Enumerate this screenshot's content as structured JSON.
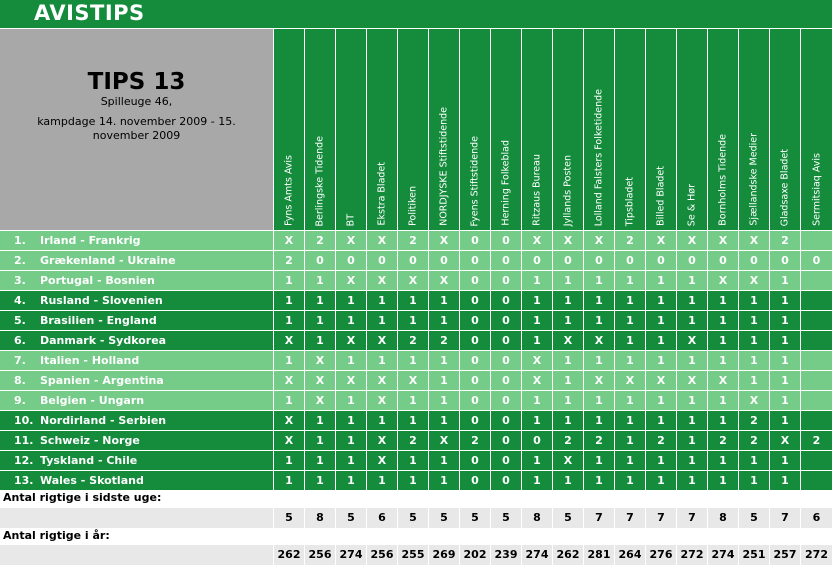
{
  "app_title": "AVISTIPS",
  "info": {
    "title": "TIPS 13",
    "week": "Spilleuge 46,",
    "dates": "kampdage 14. november 2009 - 15. november 2009"
  },
  "colors": {
    "dark_green": "#148c3c",
    "light_green": "#74cc88",
    "gray": "#a8a8a8"
  },
  "papers": [
    "Fyns Amts Avis",
    "Berlingske Tidende",
    "BT",
    "Ekstra Bladet",
    "Politiken",
    "NORDJYSKE Stiftstidende",
    "Fyens Stiftstidende",
    "Herning Folkeblad",
    "Ritzaus Bureau",
    "Jyllands Posten",
    "Lolland Falsters Folketidende",
    "Tipsbladet",
    "Billed Bladet",
    "Se & Hør",
    "Bornholms Tidende",
    "Sjællandske Medier",
    "Gladsaxe Bladet",
    "Sermitsiaq Avis"
  ],
  "matches": [
    {
      "no": "1.",
      "name": "Irland - Frankrig",
      "tips": [
        "X",
        "2",
        "X",
        "X",
        "2",
        "X",
        "0",
        "0",
        "X",
        "X",
        "X",
        "2",
        "X",
        "X",
        "X",
        "X",
        "2",
        ""
      ]
    },
    {
      "no": "2.",
      "name": "Grækenland - Ukraine",
      "tips": [
        "2",
        "0",
        "0",
        "0",
        "0",
        "0",
        "0",
        "0",
        "0",
        "0",
        "0",
        "0",
        "0",
        "0",
        "0",
        "0",
        "0",
        "0"
      ]
    },
    {
      "no": "3.",
      "name": "Portugal - Bosnien",
      "tips": [
        "1",
        "1",
        "X",
        "X",
        "X",
        "X",
        "0",
        "0",
        "1",
        "1",
        "1",
        "1",
        "1",
        "1",
        "X",
        "X",
        "1",
        ""
      ]
    },
    {
      "no": "4.",
      "name": "Rusland - Slovenien",
      "tips": [
        "1",
        "1",
        "1",
        "1",
        "1",
        "1",
        "0",
        "0",
        "1",
        "1",
        "1",
        "1",
        "1",
        "1",
        "1",
        "1",
        "1",
        ""
      ]
    },
    {
      "no": "5.",
      "name": "Brasilien - England",
      "tips": [
        "1",
        "1",
        "1",
        "1",
        "1",
        "1",
        "0",
        "0",
        "1",
        "1",
        "1",
        "1",
        "1",
        "1",
        "1",
        "1",
        "1",
        ""
      ]
    },
    {
      "no": "6.",
      "name": "Danmark - Sydkorea",
      "tips": [
        "X",
        "1",
        "X",
        "X",
        "2",
        "2",
        "0",
        "0",
        "1",
        "X",
        "X",
        "1",
        "1",
        "X",
        "1",
        "1",
        "1",
        ""
      ]
    },
    {
      "no": "7.",
      "name": "Italien - Holland",
      "tips": [
        "1",
        "X",
        "1",
        "1",
        "1",
        "1",
        "0",
        "0",
        "X",
        "1",
        "1",
        "1",
        "1",
        "1",
        "1",
        "1",
        "1",
        ""
      ]
    },
    {
      "no": "8.",
      "name": "Spanien - Argentina",
      "tips": [
        "X",
        "X",
        "X",
        "X",
        "X",
        "1",
        "0",
        "0",
        "X",
        "1",
        "X",
        "X",
        "X",
        "X",
        "X",
        "1",
        "1",
        ""
      ]
    },
    {
      "no": "9.",
      "name": "Belgien - Ungarn",
      "tips": [
        "1",
        "X",
        "1",
        "X",
        "1",
        "1",
        "0",
        "0",
        "1",
        "1",
        "1",
        "1",
        "1",
        "1",
        "1",
        "X",
        "1",
        ""
      ]
    },
    {
      "no": "10.",
      "name": "Nordirland - Serbien",
      "tips": [
        "X",
        "1",
        "1",
        "1",
        "1",
        "1",
        "0",
        "0",
        "1",
        "1",
        "1",
        "1",
        "1",
        "1",
        "1",
        "2",
        "1",
        ""
      ]
    },
    {
      "no": "11.",
      "name": "Schweiz - Norge",
      "tips": [
        "X",
        "1",
        "1",
        "X",
        "2",
        "X",
        "2",
        "0",
        "0",
        "2",
        "2",
        "1",
        "2",
        "1",
        "2",
        "2",
        "X",
        "2"
      ]
    },
    {
      "no": "12.",
      "name": "Tyskland - Chile",
      "tips": [
        "1",
        "1",
        "1",
        "X",
        "1",
        "1",
        "0",
        "0",
        "1",
        "X",
        "1",
        "1",
        "1",
        "1",
        "1",
        "1",
        "1",
        ""
      ]
    },
    {
      "no": "13.",
      "name": "Wales - Skotland",
      "tips": [
        "1",
        "1",
        "1",
        "1",
        "1",
        "1",
        "0",
        "0",
        "1",
        "1",
        "1",
        "1",
        "1",
        "1",
        "1",
        "1",
        "1",
        ""
      ]
    }
  ],
  "last_week_label": "Antal rigtige i sidste uge:",
  "last_week": [
    "5",
    "8",
    "5",
    "6",
    "5",
    "5",
    "5",
    "5",
    "8",
    "5",
    "7",
    "7",
    "7",
    "7",
    "8",
    "5",
    "7",
    "6"
  ],
  "year_label": "Antal rigtige i år:",
  "year": [
    "262",
    "256",
    "274",
    "256",
    "255",
    "269",
    "202",
    "239",
    "274",
    "262",
    "281",
    "264",
    "276",
    "272",
    "274",
    "251",
    "257",
    "272"
  ]
}
